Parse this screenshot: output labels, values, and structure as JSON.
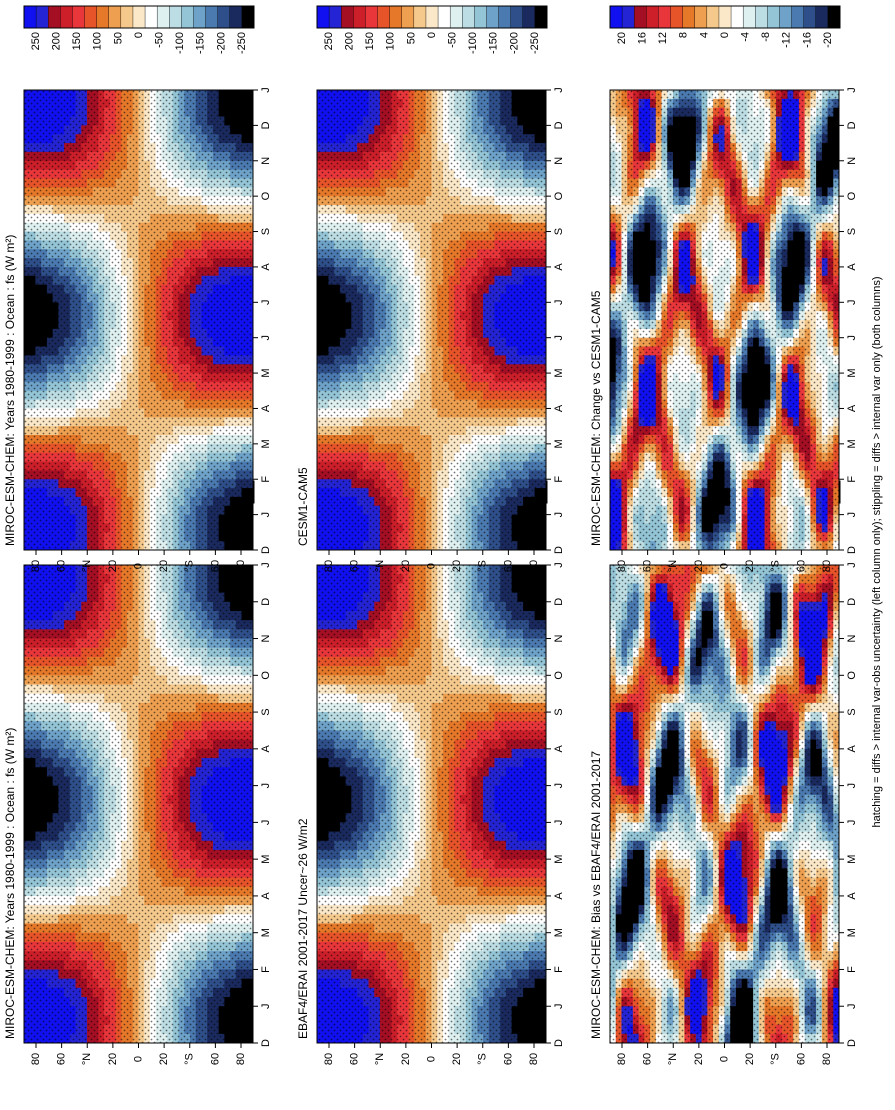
{
  "footer_caption": "hatching = diffs > internal var-obs uncertainty (left column only); stippling = diffs > internal var only (both columns)",
  "months": [
    "D",
    "J",
    "F",
    "M",
    "A",
    "M",
    "J",
    "J",
    "A",
    "S",
    "O",
    "N",
    "D",
    "J"
  ],
  "colors": {
    "full": [
      "#000000",
      "#1a2a5e",
      "#2f4f8a",
      "#4b7ab0",
      "#6ea2c9",
      "#94c5d6",
      "#bcdde3",
      "#dff0f1",
      "#ffffff",
      "#fbe8c8",
      "#f5c98c",
      "#ee9f50",
      "#e6782a",
      "#e8542a",
      "#e8363b",
      "#cc1f2a",
      "#a50f24",
      "#2424d4",
      "#1010f0"
    ]
  },
  "chart_data": [
    {
      "panel": "top-left",
      "type": "heatmap",
      "title": "MIROC-ESM-CHEM: Years 1980-1999 : Ocean : fs (W m²)",
      "xlabel": "",
      "ylabel": "",
      "x_ticks": [
        "D",
        "J",
        "F",
        "M",
        "A",
        "M",
        "J",
        "J",
        "A",
        "S",
        "O",
        "N",
        "D",
        "J"
      ],
      "y_ticks": [
        "80",
        "60",
        "°N",
        "20",
        "0",
        "20",
        "°S",
        "60",
        "80"
      ],
      "y_range": [
        -90,
        90
      ],
      "colorbar_labels": [
        "250",
        "200",
        "150",
        "100",
        "50",
        "0",
        "-50",
        "-100",
        "-150",
        "-200",
        "-250"
      ],
      "colorbar_range": [
        -250,
        250
      ],
      "field": "insolation",
      "hatching": true
    },
    {
      "panel": "top-right",
      "type": "heatmap",
      "title": "MIROC-ESM-CHEM: Years 1980-1999 : Ocean : fs (W m²)",
      "xlabel": "",
      "ylabel": "",
      "x_ticks": [
        "D",
        "J",
        "F",
        "M",
        "A",
        "M",
        "J",
        "J",
        "A",
        "S",
        "O",
        "N",
        "D",
        "J"
      ],
      "y_ticks": [
        "80",
        "60",
        "°N",
        "20",
        "0",
        "20",
        "°S",
        "60",
        "80"
      ],
      "y_range": [
        -90,
        90
      ],
      "colorbar_labels": [
        "250",
        "200",
        "150",
        "100",
        "50",
        "0",
        "-50",
        "-100",
        "-150",
        "-200",
        "-250"
      ],
      "colorbar_range": [
        -250,
        250
      ],
      "field": "insolation",
      "hatching": false
    },
    {
      "panel": "middle-left",
      "type": "heatmap",
      "title": "EBAF4/ERAI 2001-2017 Uncer~26 W/m2",
      "xlabel": "",
      "ylabel": "",
      "x_ticks": [
        "D",
        "J",
        "F",
        "M",
        "A",
        "M",
        "J",
        "J",
        "A",
        "S",
        "O",
        "N",
        "D",
        "J"
      ],
      "y_ticks": [
        "80",
        "60",
        "°N",
        "20",
        "0",
        "20",
        "°S",
        "60",
        "80"
      ],
      "y_range": [
        -90,
        90
      ],
      "colorbar_labels": [
        "250",
        "200",
        "150",
        "100",
        "50",
        "0",
        "-50",
        "-100",
        "-150",
        "-200",
        "-250"
      ],
      "colorbar_range": [
        -250,
        250
      ],
      "field": "insolation",
      "hatching": true
    },
    {
      "panel": "middle-right",
      "type": "heatmap",
      "title": "CESM1-CAM5",
      "xlabel": "",
      "ylabel": "",
      "x_ticks": [
        "D",
        "J",
        "F",
        "M",
        "A",
        "M",
        "J",
        "J",
        "A",
        "S",
        "O",
        "N",
        "D",
        "J"
      ],
      "y_ticks": [
        "80",
        "60",
        "°N",
        "20",
        "0",
        "20",
        "°S",
        "60",
        "80"
      ],
      "y_range": [
        -90,
        90
      ],
      "colorbar_labels": [
        "250",
        "200",
        "150",
        "100",
        "50",
        "0",
        "-50",
        "-100",
        "-150",
        "-200",
        "-250"
      ],
      "colorbar_range": [
        -250,
        250
      ],
      "field": "insolation",
      "hatching": false
    },
    {
      "panel": "bottom-left",
      "type": "heatmap",
      "title": "MIROC-ESM-CHEM: Bias vs EBAF4/ERAI 2001-2017",
      "xlabel": "",
      "ylabel": "",
      "x_ticks": [
        "D",
        "J",
        "F",
        "M",
        "A",
        "M",
        "J",
        "J",
        "A",
        "S",
        "O",
        "N",
        "D",
        "J"
      ],
      "y_ticks": [
        "80",
        "60",
        "°N",
        "20",
        "0",
        "20",
        "°S",
        "60",
        "80"
      ],
      "y_range": [
        -90,
        90
      ],
      "colorbar_labels": [
        "20",
        "16",
        "12",
        "8",
        "4",
        "0",
        "-4",
        "-8",
        "-12",
        "-16",
        "-20"
      ],
      "colorbar_range": [
        -20,
        20
      ],
      "field": "difference",
      "hatching": true
    },
    {
      "panel": "bottom-right",
      "type": "heatmap",
      "title": "MIROC-ESM-CHEM: Change vs CESM1-CAM5",
      "xlabel": "",
      "ylabel": "",
      "x_ticks": [
        "D",
        "J",
        "F",
        "M",
        "A",
        "M",
        "J",
        "J",
        "A",
        "S",
        "O",
        "N",
        "D",
        "J"
      ],
      "y_ticks": [
        "80",
        "60",
        "°N",
        "20",
        "0",
        "20",
        "°S",
        "60",
        "80"
      ],
      "y_range": [
        -90,
        90
      ],
      "colorbar_labels": [
        "20",
        "16",
        "12",
        "8",
        "4",
        "0",
        "-4",
        "-8",
        "-12",
        "-16",
        "-20"
      ],
      "colorbar_range": [
        -20,
        20
      ],
      "field": "difference",
      "hatching": false
    }
  ]
}
